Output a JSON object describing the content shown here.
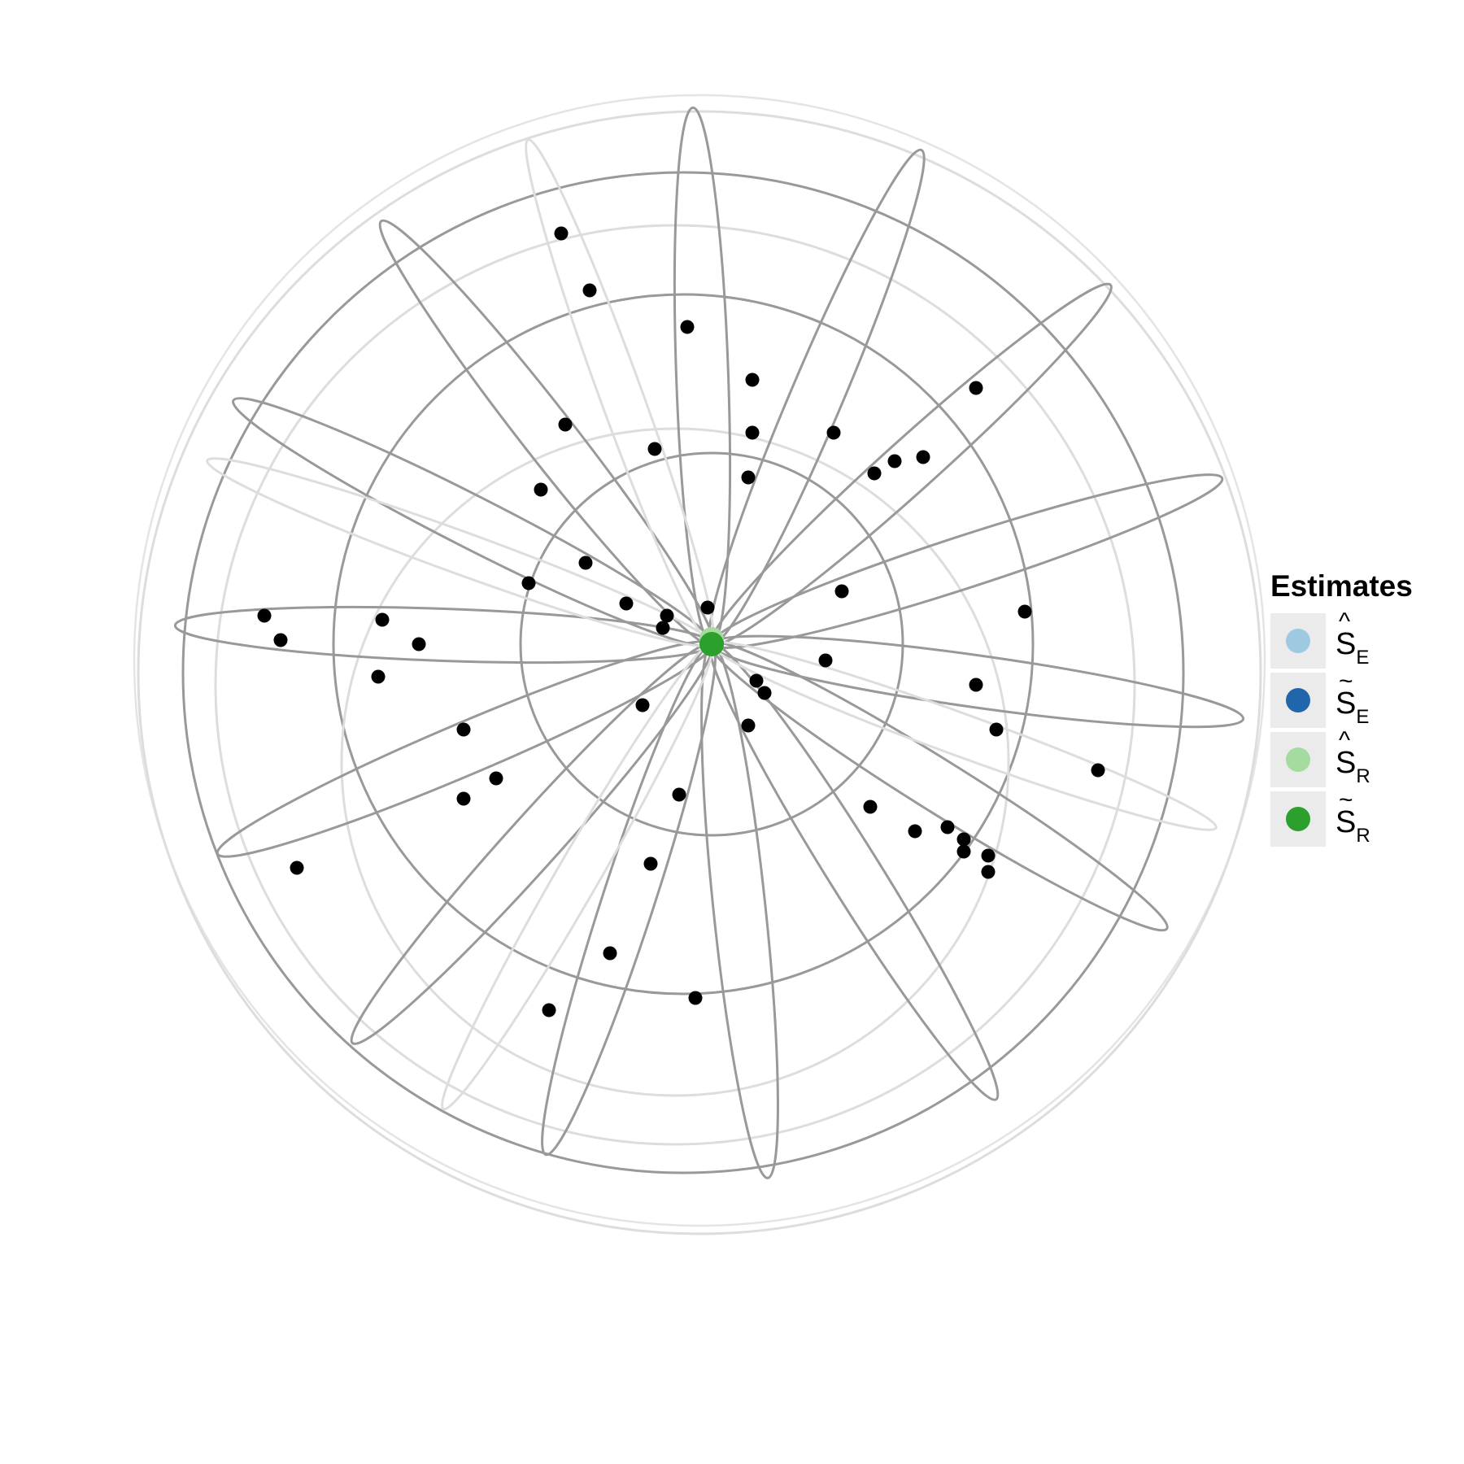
{
  "chart_data": {
    "type": "scatter",
    "title": "",
    "xlabel": "",
    "ylabel": "",
    "projection": "polar stereographic view of a sphere (unit-free geometric coordinates, origin at pole)",
    "grid": true,
    "legend_position": "right",
    "legend": {
      "title": "Estimates",
      "items": [
        {
          "mark": "^",
          "base": "S",
          "sub": "E",
          "color": "#9ecae1"
        },
        {
          "mark": "~",
          "base": "S",
          "sub": "E",
          "color": "#2166ac"
        },
        {
          "mark": "^",
          "base": "S",
          "sub": "R",
          "color": "#a6dba0"
        },
        {
          "mark": "~",
          "base": "S",
          "sub": "R",
          "color": "#2ca02c"
        }
      ]
    },
    "colors": {
      "sample_points": "#000000",
      "main_grid": "#999999",
      "light_grid": "#dddddd"
    },
    "samples": [
      [
        -0.37,
        1.01
      ],
      [
        -0.3,
        0.87
      ],
      [
        -0.06,
        0.78
      ],
      [
        0.1,
        0.65
      ],
      [
        0.1,
        0.52
      ],
      [
        0.09,
        0.41
      ],
      [
        -0.36,
        0.54
      ],
      [
        -0.14,
        0.48
      ],
      [
        -0.42,
        0.38
      ],
      [
        -0.31,
        0.2
      ],
      [
        -0.45,
        0.15
      ],
      [
        -0.21,
        0.1
      ],
      [
        -0.11,
        0.07
      ],
      [
        -0.01,
        0.09
      ],
      [
        -0.12,
        0.04
      ],
      [
        0.3,
        0.52
      ],
      [
        0.4,
        0.42
      ],
      [
        0.45,
        0.45
      ],
      [
        0.52,
        0.46
      ],
      [
        0.65,
        0.63
      ],
      [
        0.32,
        0.13
      ],
      [
        0.77,
        0.08
      ],
      [
        -1.1,
        0.07
      ],
      [
        -1.06,
        0.01
      ],
      [
        -0.81,
        0.06
      ],
      [
        -0.72,
        0.0
      ],
      [
        -0.82,
        -0.08
      ],
      [
        0.28,
        -0.04
      ],
      [
        0.11,
        -0.09
      ],
      [
        0.13,
        -0.12
      ],
      [
        0.09,
        -0.2
      ],
      [
        0.65,
        -0.1
      ],
      [
        0.7,
        -0.21
      ],
      [
        -0.61,
        -0.21
      ],
      [
        -0.17,
        -0.15
      ],
      [
        -0.53,
        -0.33
      ],
      [
        -0.61,
        -0.38
      ],
      [
        0.95,
        -0.31
      ],
      [
        -0.08,
        -0.37
      ],
      [
        0.39,
        -0.4
      ],
      [
        0.5,
        -0.46
      ],
      [
        0.58,
        -0.45
      ],
      [
        0.62,
        -0.51
      ],
      [
        0.62,
        -0.48
      ],
      [
        0.68,
        -0.52
      ],
      [
        0.68,
        -0.56
      ],
      [
        -1.02,
        -0.55
      ],
      [
        -0.15,
        -0.54
      ],
      [
        -0.25,
        -0.76
      ],
      [
        -0.04,
        -0.87
      ],
      [
        -0.4,
        -0.9
      ]
    ],
    "estimates": [
      {
        "series": 0,
        "x": 0.0,
        "y": 0.01
      },
      {
        "series": 1,
        "x": 0.0,
        "y": 0.005
      },
      {
        "series": 2,
        "x": 0.0,
        "y": 0.012
      },
      {
        "series": 3,
        "x": 0.0,
        "y": 0.0
      }
    ],
    "circles": [
      {
        "cx": 0.0,
        "cy": 0.0,
        "r": 0.47,
        "style": "main"
      },
      {
        "cx": -0.07,
        "cy": 0.0,
        "r": 0.86,
        "style": "main"
      },
      {
        "cx": -0.07,
        "cy": -0.07,
        "r": 1.23,
        "style": "main"
      },
      {
        "cx": -0.03,
        "cy": -0.07,
        "r": 1.38,
        "style": "light"
      },
      {
        "cx": -0.09,
        "cy": -0.29,
        "r": 0.82,
        "style": "light"
      },
      {
        "cx": -0.09,
        "cy": -0.1,
        "r": 1.13,
        "style": "light"
      },
      {
        "cx": -0.03,
        "cy": -0.04,
        "r": 1.39,
        "style": "faint"
      }
    ],
    "meridians": [
      {
        "angle": 92,
        "style": "main"
      },
      {
        "angle": 67,
        "style": "main"
      },
      {
        "angle": 42,
        "style": "main"
      },
      {
        "angle": 18,
        "style": "main"
      },
      {
        "angle": -8,
        "style": "main"
      },
      {
        "angle": -32,
        "style": "main"
      },
      {
        "angle": -58,
        "style": "main"
      },
      {
        "angle": -84,
        "style": "main"
      },
      {
        "angle": -108,
        "style": "main"
      },
      {
        "angle": -132,
        "style": "main"
      },
      {
        "angle": -157,
        "style": "main"
      },
      {
        "angle": 178,
        "style": "main"
      },
      {
        "angle": 153,
        "style": "main"
      },
      {
        "angle": 128,
        "style": "main"
      },
      {
        "angle": 110,
        "style": "light"
      },
      {
        "angle": -20,
        "style": "light"
      },
      {
        "angle": -120,
        "style": "light"
      },
      {
        "angle": 160,
        "style": "light"
      }
    ]
  }
}
